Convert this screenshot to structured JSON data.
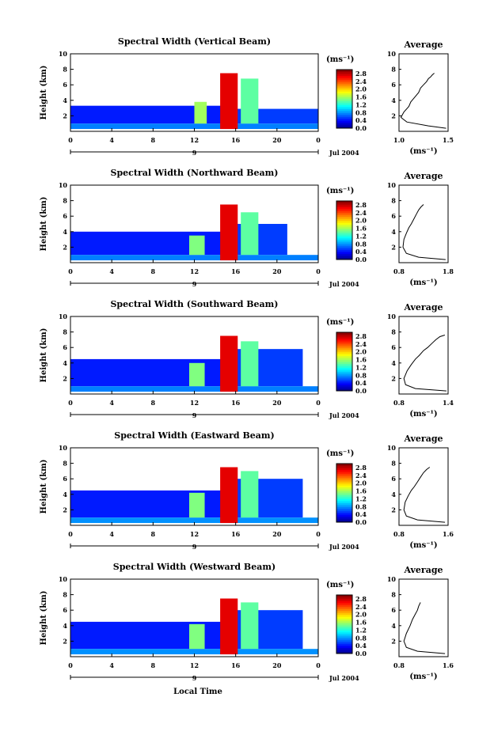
{
  "figure": {
    "xlabel": "Local Time",
    "date_label": "Jul 2004",
    "secondary_tick": "9"
  },
  "colorbar": {
    "unit": "(ms⁻¹)",
    "ticks": [
      "2.8",
      "2.4",
      "2.0",
      "1.6",
      "1.2",
      "0.8",
      "0.4",
      "0.0"
    ],
    "range": [
      0.0,
      3.0
    ]
  },
  "chart_data": [
    {
      "type": "heatmap",
      "title": "Spectral Width (Vertical Beam)",
      "xlabel": "",
      "ylabel": "Height (km)",
      "xlim": [
        0,
        24
      ],
      "ylim": [
        0,
        10
      ],
      "x_ticks": [
        "0",
        "4",
        "8",
        "12",
        "16",
        "20",
        "0"
      ],
      "y_ticks": [
        "10",
        "8",
        "6",
        "4",
        "2"
      ],
      "colorbar_unit": "(ms⁻¹)",
      "colorbar_range": [
        0.0,
        3.0
      ],
      "layers": [
        {
          "x": [
            0,
            14.8
          ],
          "y": [
            1.0,
            3.3
          ],
          "level": 0.45
        },
        {
          "x": [
            14.8,
            24
          ],
          "y": [
            1.0,
            2.9
          ],
          "level": 0.55
        },
        {
          "x": [
            0,
            24
          ],
          "y": [
            0.3,
            1.0
          ],
          "level": 0.75
        },
        {
          "x": [
            14.5,
            16.2
          ],
          "y": [
            0.3,
            7.5
          ],
          "level": 2.7
        },
        {
          "x": [
            12.0,
            13.2
          ],
          "y": [
            1.0,
            3.8
          ],
          "level": 1.6
        },
        {
          "x": [
            16.5,
            18.2
          ],
          "y": [
            1.0,
            6.8
          ],
          "level": 1.4
        }
      ],
      "average_profile": {
        "title": "Average",
        "xlabel": "(ms⁻¹)",
        "ylabel": "",
        "x_ticks": [
          "1.0",
          "1.5"
        ],
        "xlim": [
          1.0,
          1.5
        ],
        "y_ticks": [
          "10",
          "8",
          "6",
          "4",
          "2"
        ],
        "ylim": [
          0,
          10
        ],
        "x": [
          1.48,
          1.3,
          1.08,
          1.02,
          1.05,
          1.1,
          1.12,
          1.16,
          1.2,
          1.22,
          1.25,
          1.28,
          1.3,
          1.32,
          1.34,
          1.36
        ],
        "y": [
          0.4,
          0.7,
          1.2,
          1.8,
          2.5,
          3.2,
          3.8,
          4.4,
          5.0,
          5.6,
          6.0,
          6.4,
          6.8,
          7.0,
          7.3,
          7.5
        ]
      }
    },
    {
      "type": "heatmap",
      "title": "Spectral Width (Northward Beam)",
      "xlabel": "",
      "ylabel": "Height (km)",
      "xlim": [
        0,
        24
      ],
      "ylim": [
        0,
        10
      ],
      "x_ticks": [
        "0",
        "4",
        "8",
        "12",
        "16",
        "20",
        "0"
      ],
      "y_ticks": [
        "10",
        "8",
        "6",
        "4",
        "2"
      ],
      "colorbar_unit": "(ms⁻¹)",
      "colorbar_range": [
        0.0,
        3.0
      ],
      "layers": [
        {
          "x": [
            0,
            14.8
          ],
          "y": [
            1.0,
            4.0
          ],
          "level": 0.45
        },
        {
          "x": [
            14.8,
            21.0
          ],
          "y": [
            1.0,
            5.0
          ],
          "level": 0.55
        },
        {
          "x": [
            0,
            24
          ],
          "y": [
            0.3,
            1.0
          ],
          "level": 0.75
        },
        {
          "x": [
            14.5,
            16.2
          ],
          "y": [
            0.3,
            7.5
          ],
          "level": 2.7
        },
        {
          "x": [
            11.5,
            13.0
          ],
          "y": [
            1.0,
            3.5
          ],
          "level": 1.5
        },
        {
          "x": [
            16.5,
            18.2
          ],
          "y": [
            1.0,
            6.5
          ],
          "level": 1.4
        }
      ],
      "average_profile": {
        "title": "Average",
        "xlabel": "(ms⁻¹)",
        "ylabel": "",
        "x_ticks": [
          "0.8",
          "1.8"
        ],
        "xlim": [
          0.8,
          1.8
        ],
        "y_ticks": [
          "10",
          "8",
          "6",
          "4",
          "2"
        ],
        "ylim": [
          0,
          10
        ],
        "x": [
          1.75,
          1.2,
          0.95,
          0.88,
          0.9,
          0.95,
          1.0,
          1.05,
          1.1,
          1.15,
          1.2,
          1.25,
          1.3
        ],
        "y": [
          0.4,
          0.7,
          1.2,
          2.0,
          3.0,
          3.8,
          4.5,
          5.0,
          5.6,
          6.2,
          6.8,
          7.2,
          7.5
        ]
      }
    },
    {
      "type": "heatmap",
      "title": "Spectral Width (Southward Beam)",
      "xlabel": "",
      "ylabel": "Height (km)",
      "xlim": [
        0,
        24
      ],
      "ylim": [
        0,
        10
      ],
      "x_ticks": [
        "0",
        "4",
        "8",
        "12",
        "16",
        "20",
        "0"
      ],
      "y_ticks": [
        "10",
        "8",
        "6",
        "4",
        "2"
      ],
      "colorbar_unit": "(ms⁻¹)",
      "colorbar_range": [
        0.0,
        3.0
      ],
      "layers": [
        {
          "x": [
            0,
            14.8
          ],
          "y": [
            1.0,
            4.5
          ],
          "level": 0.45
        },
        {
          "x": [
            14.8,
            22.5
          ],
          "y": [
            1.0,
            5.8
          ],
          "level": 0.55
        },
        {
          "x": [
            0,
            24
          ],
          "y": [
            0.3,
            1.0
          ],
          "level": 0.75
        },
        {
          "x": [
            14.5,
            16.2
          ],
          "y": [
            0.3,
            7.5
          ],
          "level": 2.7
        },
        {
          "x": [
            11.5,
            13.0
          ],
          "y": [
            1.0,
            4.0
          ],
          "level": 1.5
        },
        {
          "x": [
            16.5,
            18.2
          ],
          "y": [
            1.0,
            6.8
          ],
          "level": 1.4
        }
      ],
      "average_profile": {
        "title": "Average",
        "xlabel": "(ms⁻¹)",
        "ylabel": "",
        "x_ticks": [
          "0.8",
          "1.4"
        ],
        "xlim": [
          0.8,
          1.4
        ],
        "y_ticks": [
          "10",
          "8",
          "6",
          "4",
          "2"
        ],
        "ylim": [
          0,
          10
        ],
        "x": [
          1.38,
          1.0,
          0.88,
          0.86,
          0.9,
          0.95,
          1.0,
          1.05,
          1.1,
          1.15,
          1.2,
          1.25,
          1.3,
          1.36
        ],
        "y": [
          0.4,
          0.7,
          1.2,
          2.0,
          3.0,
          3.8,
          4.5,
          5.0,
          5.6,
          6.0,
          6.5,
          7.0,
          7.4,
          7.6
        ]
      }
    },
    {
      "type": "heatmap",
      "title": "Spectral Width (Eastward Beam)",
      "xlabel": "",
      "ylabel": "Height (km)",
      "xlim": [
        0,
        24
      ],
      "ylim": [
        0,
        10
      ],
      "x_ticks": [
        "0",
        "4",
        "8",
        "12",
        "16",
        "20",
        "0"
      ],
      "y_ticks": [
        "10",
        "8",
        "6",
        "4",
        "2"
      ],
      "colorbar_unit": "(ms⁻¹)",
      "colorbar_range": [
        0.0,
        3.0
      ],
      "layers": [
        {
          "x": [
            0,
            14.8
          ],
          "y": [
            1.0,
            4.5
          ],
          "level": 0.45
        },
        {
          "x": [
            14.8,
            22.5
          ],
          "y": [
            1.0,
            6.0
          ],
          "level": 0.55
        },
        {
          "x": [
            0,
            24
          ],
          "y": [
            0.3,
            1.0
          ],
          "level": 0.8
        },
        {
          "x": [
            14.5,
            16.2
          ],
          "y": [
            0.3,
            7.5
          ],
          "level": 2.7
        },
        {
          "x": [
            11.5,
            13.0
          ],
          "y": [
            1.0,
            4.2
          ],
          "level": 1.5
        },
        {
          "x": [
            16.5,
            18.2
          ],
          "y": [
            1.0,
            7.0
          ],
          "level": 1.4
        }
      ],
      "average_profile": {
        "title": "Average",
        "xlabel": "(ms⁻¹)",
        "ylabel": "",
        "x_ticks": [
          "0.8",
          "1.6"
        ],
        "xlim": [
          0.8,
          1.6
        ],
        "y_ticks": [
          "10",
          "8",
          "6",
          "4",
          "2"
        ],
        "ylim": [
          0,
          10
        ],
        "x": [
          1.55,
          1.1,
          0.92,
          0.88,
          0.9,
          0.95,
          1.0,
          1.05,
          1.1,
          1.15,
          1.2,
          1.25,
          1.3
        ],
        "y": [
          0.4,
          0.7,
          1.2,
          2.0,
          3.0,
          3.8,
          4.5,
          5.0,
          5.6,
          6.2,
          6.8,
          7.2,
          7.5
        ]
      }
    },
    {
      "type": "heatmap",
      "title": "Spectral Width (Westward Beam)",
      "xlabel": "Local Time",
      "ylabel": "Height (km)",
      "xlim": [
        0,
        24
      ],
      "ylim": [
        0,
        10
      ],
      "x_ticks": [
        "0",
        "4",
        "8",
        "12",
        "16",
        "20",
        "0"
      ],
      "y_ticks": [
        "10",
        "8",
        "6",
        "4",
        "2"
      ],
      "colorbar_unit": "(ms⁻¹)",
      "colorbar_range": [
        0.0,
        3.0
      ],
      "layers": [
        {
          "x": [
            0,
            14.8
          ],
          "y": [
            1.0,
            4.5
          ],
          "level": 0.45
        },
        {
          "x": [
            14.8,
            22.5
          ],
          "y": [
            1.0,
            6.0
          ],
          "level": 0.55
        },
        {
          "x": [
            0,
            24
          ],
          "y": [
            0.3,
            1.0
          ],
          "level": 0.8
        },
        {
          "x": [
            14.5,
            16.2
          ],
          "y": [
            0.3,
            7.5
          ],
          "level": 2.7
        },
        {
          "x": [
            11.5,
            13.0
          ],
          "y": [
            1.0,
            4.2
          ],
          "level": 1.5
        },
        {
          "x": [
            16.5,
            18.2
          ],
          "y": [
            1.0,
            7.0
          ],
          "level": 1.4
        }
      ],
      "average_profile": {
        "title": "Average",
        "xlabel": "(ms⁻¹)",
        "ylabel": "",
        "x_ticks": [
          "0.8",
          "1.6"
        ],
        "xlim": [
          0.8,
          1.6
        ],
        "y_ticks": [
          "10",
          "8",
          "6",
          "4",
          "2"
        ],
        "ylim": [
          0,
          10
        ],
        "x": [
          1.55,
          1.1,
          0.92,
          0.88,
          0.92,
          0.98,
          1.02,
          1.06,
          1.1,
          1.12,
          1.15
        ],
        "y": [
          0.4,
          0.7,
          1.2,
          2.0,
          3.0,
          4.0,
          4.8,
          5.4,
          6.0,
          6.5,
          7.0
        ]
      }
    }
  ]
}
